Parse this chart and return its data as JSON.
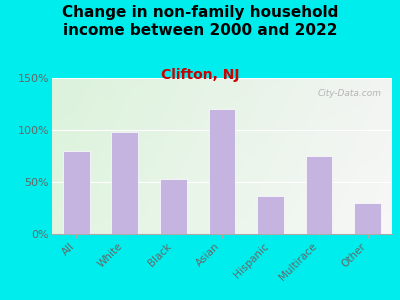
{
  "title": "Change in non-family household\nincome between 2000 and 2022",
  "subtitle": "Clifton, NJ",
  "categories": [
    "All",
    "White",
    "Black",
    "Asian",
    "Hispanic",
    "Multirace",
    "Other"
  ],
  "values": [
    80,
    98,
    53,
    120,
    37,
    75,
    30
  ],
  "bar_color": "#c5b3e0",
  "title_fontsize": 11,
  "subtitle_fontsize": 10,
  "subtitle_color": "#cc0000",
  "background_outer": "#00eded",
  "background_inner_topleft": "#e0f0e0",
  "background_inner_topright": "#eeeeee",
  "background_inner_bottomleft": "#e8f5e2",
  "background_inner_bottomright": "#f0f5ee",
  "ylabel_color": "#666666",
  "tick_label_color": "#666666",
  "watermark": "City-Data.com",
  "ylim": [
    0,
    150
  ],
  "yticks": [
    0,
    50,
    100,
    150
  ],
  "ytick_labels": [
    "0%",
    "50%",
    "100%",
    "150%"
  ]
}
